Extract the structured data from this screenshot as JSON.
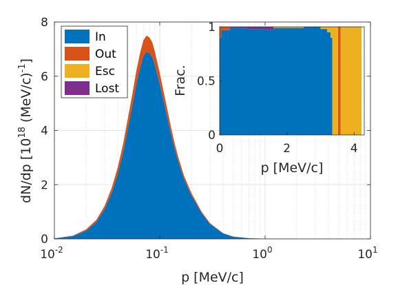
{
  "chart_data": [
    {
      "type": "area",
      "stacked": true,
      "title": "",
      "xlabel": "p [MeV/c]",
      "ylabel": "dN/dp [10^18 (MeV/c)^-1]",
      "xscale": "log",
      "xlim": [
        0.01,
        10
      ],
      "ylim": [
        0,
        8
      ],
      "x_ticks": [
        0.01,
        0.1,
        1,
        10
      ],
      "x_tick_labels": [
        {
          "base": "10",
          "exp": "-2"
        },
        {
          "base": "10",
          "exp": "-1"
        },
        {
          "base": "10",
          "exp": "0"
        },
        {
          "base": "10",
          "exp": "1"
        }
      ],
      "y_ticks": [
        0,
        2,
        4,
        6,
        8
      ],
      "ylabel_parts": {
        "pre": "dN/dp [10",
        "sup1": "18",
        "mid": " (MeV/c)",
        "sup2": "-1",
        "post": "]"
      },
      "grid": true,
      "legend_position": "top-left",
      "x": [
        0.01,
        0.015,
        0.02,
        0.025,
        0.03,
        0.035,
        0.04,
        0.045,
        0.05,
        0.055,
        0.06,
        0.065,
        0.07,
        0.075,
        0.08,
        0.085,
        0.09,
        0.1,
        0.11,
        0.12,
        0.13,
        0.14,
        0.15,
        0.17,
        0.2,
        0.25,
        0.3,
        0.4,
        0.5,
        0.7,
        1.0,
        1.5,
        2.0,
        3.0,
        5.0,
        10.0
      ],
      "series": [
        {
          "name": "In",
          "color": "#0072BD",
          "values": [
            0.02,
            0.1,
            0.3,
            0.62,
            1.1,
            1.7,
            2.4,
            3.2,
            4.1,
            4.9,
            5.7,
            6.3,
            6.75,
            6.9,
            6.85,
            6.7,
            6.4,
            5.7,
            5.0,
            4.35,
            3.75,
            3.25,
            2.85,
            2.2,
            1.6,
            0.95,
            0.55,
            0.2,
            0.08,
            0.025,
            0.008,
            0.002,
            0.001,
            0.0,
            0.0,
            0.0
          ]
        },
        {
          "name": "Out",
          "color": "#D95319",
          "values": [
            0.0,
            0.02,
            0.05,
            0.08,
            0.12,
            0.18,
            0.25,
            0.32,
            0.38,
            0.45,
            0.5,
            0.55,
            0.58,
            0.6,
            0.58,
            0.55,
            0.5,
            0.42,
            0.35,
            0.3,
            0.25,
            0.2,
            0.17,
            0.13,
            0.09,
            0.05,
            0.03,
            0.01,
            0.005,
            0.002,
            0.0,
            0.0,
            0.0,
            0.0,
            0.0,
            0.0
          ]
        },
        {
          "name": "Esc",
          "color": "#EDB120",
          "values": [
            0.0,
            0.0,
            0.0,
            0.0,
            0.0,
            0.0,
            0.0,
            0.0,
            0.0,
            0.0,
            0.0,
            0.0,
            0.0,
            0.0,
            0.0,
            0.0,
            0.0,
            0.0,
            0.0,
            0.0,
            0.0,
            0.0,
            0.0,
            0.0,
            0.0,
            0.0,
            0.0,
            0.0,
            0.0,
            0.0,
            0.0,
            0.0,
            0.0,
            0.0,
            0.0,
            0.0
          ]
        },
        {
          "name": "Lost",
          "color": "#7E2F8E",
          "values": [
            0.0,
            0.0,
            0.0,
            0.0,
            0.0,
            0.0,
            0.0,
            0.0,
            0.0,
            0.0,
            0.0,
            0.0,
            0.0,
            0.0,
            0.0,
            0.0,
            0.0,
            0.0,
            0.0,
            0.0,
            0.0,
            0.0,
            0.0,
            0.0,
            0.0,
            0.0,
            0.0,
            0.0,
            0.0,
            0.0,
            0.0,
            0.0,
            0.0,
            0.0,
            0.0,
            0.0
          ]
        }
      ]
    },
    {
      "type": "area",
      "stacked": true,
      "title": "",
      "xlabel": "p [MeV/c]",
      "ylabel": "Frac.",
      "xlim": [
        0,
        4.3
      ],
      "ylim": [
        0,
        1
      ],
      "x_ticks": [
        0,
        2,
        4
      ],
      "y_ticks": [
        0,
        0.5,
        1
      ],
      "x": [
        0.0,
        0.05,
        0.3,
        0.8,
        1.4,
        1.6,
        2.5,
        3.0,
        3.2,
        3.3,
        3.35,
        3.45,
        3.52,
        3.56,
        3.6,
        4.22
      ],
      "series": [
        {
          "name": "In",
          "color": "#0072BD",
          "values": [
            0.9,
            0.97,
            0.99,
            0.98,
            0.97,
            0.99,
            1.0,
            0.98,
            0.95,
            0.9,
            0.0,
            0.0,
            0.0,
            0.0,
            0.0,
            0.0
          ]
        },
        {
          "name": "Out",
          "color": "#D95319",
          "values": [
            0.1,
            0.03,
            0.0,
            0.0,
            0.0,
            0.0,
            0.0,
            0.0,
            0.0,
            0.0,
            0.0,
            0.0,
            1.0,
            1.0,
            0.0,
            0.0
          ]
        },
        {
          "name": "Esc",
          "color": "#EDB120",
          "values": [
            0.0,
            0.0,
            0.0,
            0.0,
            0.0,
            0.01,
            0.0,
            0.02,
            0.05,
            0.1,
            1.0,
            1.0,
            0.0,
            0.0,
            1.0,
            1.0
          ]
        },
        {
          "name": "Lost",
          "color": "#7E2F8E",
          "values": [
            0.0,
            0.0,
            0.01,
            0.02,
            0.03,
            0.0,
            0.0,
            0.0,
            0.0,
            0.0,
            0.0,
            0.0,
            0.0,
            0.0,
            0.0,
            0.0
          ]
        }
      ]
    }
  ]
}
